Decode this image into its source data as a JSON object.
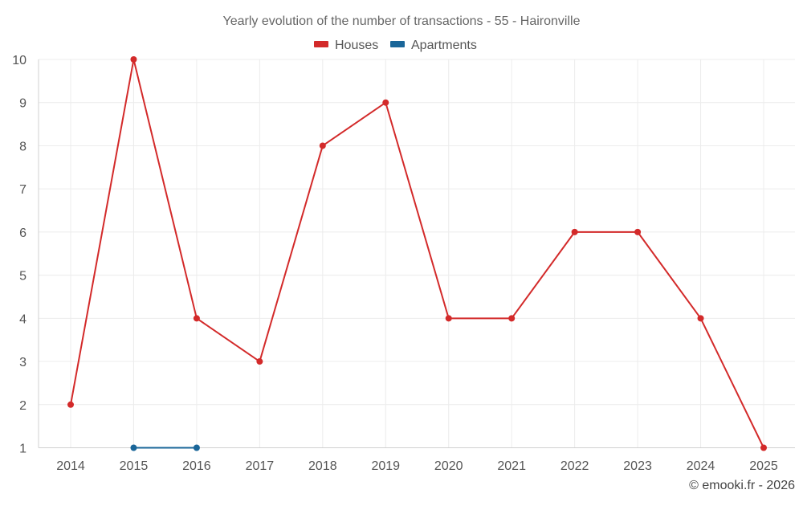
{
  "chart_data": {
    "type": "line",
    "title": "Yearly evolution of the number of transactions - 55 - Haironville",
    "xlabel": "",
    "ylabel": "",
    "categories": [
      "2014",
      "2015",
      "2016",
      "2017",
      "2018",
      "2019",
      "2020",
      "2021",
      "2022",
      "2023",
      "2024",
      "2025"
    ],
    "ylim": [
      1,
      10
    ],
    "yticks": [
      1,
      2,
      3,
      4,
      5,
      6,
      7,
      8,
      9,
      10
    ],
    "grid": true,
    "legend_position": "top-center",
    "series": [
      {
        "name": "Houses",
        "color": "#d32a2a",
        "values": [
          2,
          10,
          4,
          3,
          8,
          9,
          4,
          4,
          6,
          6,
          4,
          1
        ]
      },
      {
        "name": "Apartments",
        "color": "#1a6699",
        "values": [
          null,
          1,
          1,
          null,
          null,
          null,
          null,
          null,
          null,
          null,
          null,
          null
        ]
      }
    ],
    "credit": "© emooki.fr - 2026"
  }
}
